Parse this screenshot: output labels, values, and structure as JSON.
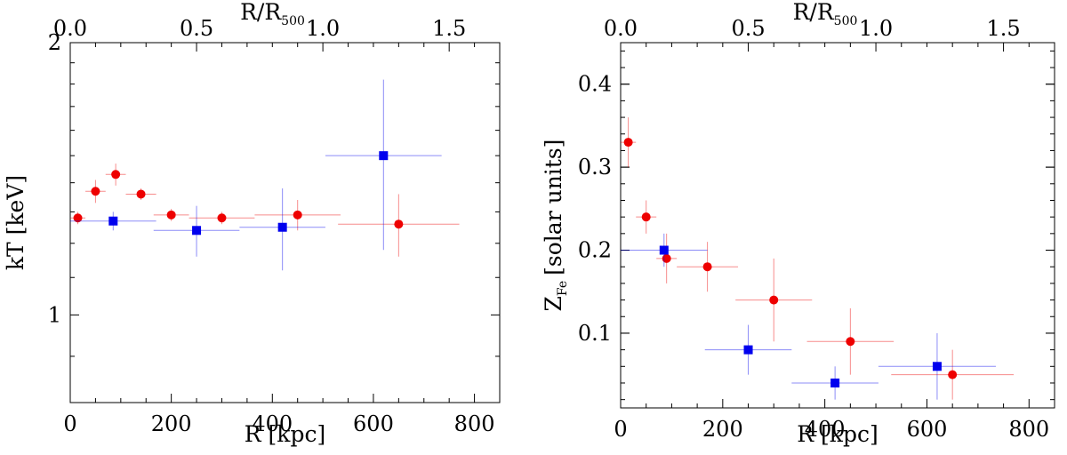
{
  "chart_data": [
    {
      "type": "scatter",
      "title": "",
      "xlabel": "R [kpc]",
      "ylabel": "kT [keV]",
      "top_xlabel": "R/R",
      "top_xlabel_sub": "500",
      "xlim": [
        0,
        850
      ],
      "ylim": [
        0.8,
        2.0
      ],
      "yscale": "log",
      "xticks": [
        0,
        200,
        400,
        600,
        800
      ],
      "xtick_labels": [
        "0",
        "200",
        "400",
        "600",
        "800"
      ],
      "yticks": [
        1,
        2
      ],
      "ytick_labels": [
        "1",
        "2"
      ],
      "top_xticks": [
        0.0,
        0.5,
        1.0,
        1.5
      ],
      "top_xtick_labels": [
        "0.0",
        "0.5",
        "1.0",
        "1.5"
      ],
      "r500_kpc": 500,
      "series": [
        {
          "name": "red circles",
          "marker": "circle",
          "color": "#ee0000",
          "points": [
            {
              "x": 15,
              "xerr": 15,
              "y": 1.28,
              "yerr": 0.02
            },
            {
              "x": 50,
              "xerr": 20,
              "y": 1.37,
              "yerr": 0.04
            },
            {
              "x": 90,
              "xerr": 20,
              "y": 1.43,
              "yerr": 0.04
            },
            {
              "x": 140,
              "xerr": 30,
              "y": 1.36,
              "yerr": 0.02
            },
            {
              "x": 200,
              "xerr": 35,
              "y": 1.29,
              "yerr": 0.02
            },
            {
              "x": 300,
              "xerr": 65,
              "y": 1.28,
              "yerr": 0.02
            },
            {
              "x": 450,
              "xerr": 85,
              "y": 1.29,
              "yerr": 0.05
            },
            {
              "x": 650,
              "xerr": 120,
              "y": 1.26,
              "yerr": 0.1
            }
          ]
        },
        {
          "name": "blue squares",
          "marker": "square",
          "color": "#0000ee",
          "points": [
            {
              "x": 85,
              "xerr": 85,
              "y": 1.27,
              "yerr": 0.03
            },
            {
              "x": 250,
              "xerr": 85,
              "y": 1.24,
              "yerr": 0.08
            },
            {
              "x": 420,
              "xerr": 85,
              "y": 1.25,
              "yerr": 0.13
            },
            {
              "x": 620,
              "xerr": 115,
              "y": 1.5,
              "yerr": 0.32
            }
          ]
        }
      ]
    },
    {
      "type": "scatter",
      "title": "",
      "xlabel": "R [kpc]",
      "ylabel": "Z",
      "ylabel_sub": "Fe",
      "ylabel_suffix": "[solar units]",
      "top_xlabel": "R/R",
      "top_xlabel_sub": "500",
      "xlim": [
        0,
        850
      ],
      "ylim": [
        0.01,
        0.45
      ],
      "yscale": "linear",
      "xticks": [
        0,
        200,
        400,
        600,
        800
      ],
      "xtick_labels": [
        "0",
        "200",
        "400",
        "600",
        "800"
      ],
      "yticks": [
        0.1,
        0.2,
        0.3,
        0.4
      ],
      "ytick_labels": [
        "0.1",
        "0.2",
        "0.3",
        "0.4"
      ],
      "top_xticks": [
        0.0,
        0.5,
        1.0,
        1.5
      ],
      "top_xtick_labels": [
        "0.0",
        "0.5",
        "1.0",
        "1.5"
      ],
      "r500_kpc": 500,
      "series": [
        {
          "name": "red circles",
          "marker": "circle",
          "color": "#ee0000",
          "points": [
            {
              "x": 15,
              "xerr": 15,
              "y": 0.33,
              "yerr": 0.03
            },
            {
              "x": 50,
              "xerr": 20,
              "y": 0.24,
              "yerr": 0.02
            },
            {
              "x": 90,
              "xerr": 20,
              "y": 0.19,
              "yerr": 0.03
            },
            {
              "x": 170,
              "xerr": 60,
              "y": 0.18,
              "yerr": 0.03
            },
            {
              "x": 300,
              "xerr": 75,
              "y": 0.14,
              "yerr": 0.05
            },
            {
              "x": 450,
              "xerr": 85,
              "y": 0.09,
              "yerr": 0.04
            },
            {
              "x": 650,
              "xerr": 120,
              "y": 0.05,
              "yerr": 0.03
            }
          ]
        },
        {
          "name": "blue squares",
          "marker": "square",
          "color": "#0000ee",
          "points": [
            {
              "x": 85,
              "xerr": 85,
              "y": 0.2,
              "yerr": 0.02
            },
            {
              "x": 250,
              "xerr": 85,
              "y": 0.08,
              "yerr": 0.03
            },
            {
              "x": 420,
              "xerr": 85,
              "y": 0.04,
              "yerr": 0.02
            },
            {
              "x": 620,
              "xerr": 115,
              "y": 0.06,
              "yerr": 0.04
            }
          ]
        }
      ]
    }
  ]
}
